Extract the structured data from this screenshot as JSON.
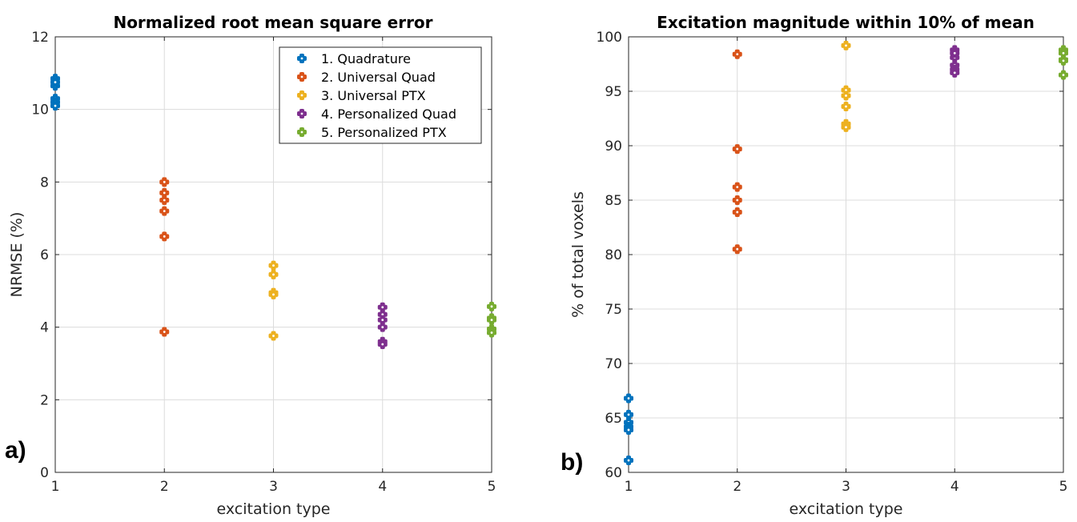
{
  "panel_labels": [
    "a)",
    "b)"
  ],
  "chart_data": [
    {
      "type": "scatter",
      "title": "Normalized root mean square error",
      "xlabel": "excitation type",
      "ylabel": "NRMSE (%)",
      "xlim": [
        1,
        5
      ],
      "ylim": [
        0,
        12
      ],
      "xticks": [
        1,
        2,
        3,
        4,
        5
      ],
      "yticks": [
        0,
        2,
        4,
        6,
        8,
        10,
        12
      ],
      "grid": true,
      "legend": "top-right",
      "series": [
        {
          "name": "1. Quadrature",
          "color": "#0072BD",
          "x": [
            1,
            1,
            1,
            1,
            1,
            1
          ],
          "y": [
            10.85,
            10.65,
            10.3,
            10.2,
            10.1,
            10.75
          ]
        },
        {
          "name": "2. Universal Quad",
          "color": "#D95319",
          "x": [
            2,
            2,
            2,
            2,
            2,
            2
          ],
          "y": [
            8.0,
            7.7,
            7.5,
            7.2,
            6.5,
            3.87
          ]
        },
        {
          "name": "3. Universal PTX",
          "color": "#EDB120",
          "x": [
            3,
            3,
            3,
            3,
            3
          ],
          "y": [
            5.7,
            5.45,
            4.95,
            4.9,
            3.76
          ]
        },
        {
          "name": "4. Personalized Quad",
          "color": "#7E2F8E",
          "x": [
            4,
            4,
            4,
            4,
            4,
            4
          ],
          "y": [
            4.55,
            4.35,
            4.2,
            4.0,
            3.6,
            3.53
          ]
        },
        {
          "name": "5. Personalized PTX",
          "color": "#77AC30",
          "x": [
            5,
            5,
            5,
            5,
            5
          ],
          "y": [
            4.57,
            4.25,
            4.2,
            3.95,
            3.85
          ]
        }
      ]
    },
    {
      "type": "scatter",
      "title": "Excitation magnitude within 10% of mean",
      "xlabel": "excitation type",
      "ylabel": "% of total voxels",
      "xlim": [
        1,
        5
      ],
      "ylim": [
        60,
        100
      ],
      "xticks": [
        1,
        2,
        3,
        4,
        5
      ],
      "yticks": [
        60,
        65,
        70,
        75,
        80,
        85,
        90,
        95,
        100
      ],
      "grid": true,
      "series": [
        {
          "name": "1. Quadrature",
          "color": "#0072BD",
          "x": [
            1,
            1,
            1,
            1,
            1,
            1
          ],
          "y": [
            66.8,
            65.3,
            64.6,
            64.2,
            63.9,
            61.1
          ]
        },
        {
          "name": "2. Universal Quad",
          "color": "#D95319",
          "x": [
            2,
            2,
            2,
            2,
            2,
            2
          ],
          "y": [
            98.4,
            89.7,
            86.2,
            85.0,
            83.9,
            80.5
          ]
        },
        {
          "name": "3. Universal PTX",
          "color": "#EDB120",
          "x": [
            3,
            3,
            3,
            3,
            3,
            3
          ],
          "y": [
            99.2,
            95.1,
            94.6,
            93.6,
            92.0,
            91.7
          ]
        },
        {
          "name": "4. Personalized Quad",
          "color": "#7E2F8E",
          "x": [
            4,
            4,
            4,
            4,
            4,
            4
          ],
          "y": [
            98.8,
            98.1,
            97.4,
            97.0,
            96.7,
            98.5
          ]
        },
        {
          "name": "5. Personalized PTX",
          "color": "#77AC30",
          "x": [
            5,
            5,
            5,
            5,
            5
          ],
          "y": [
            98.8,
            98.5,
            97.9,
            97.8,
            96.5
          ]
        }
      ]
    }
  ]
}
